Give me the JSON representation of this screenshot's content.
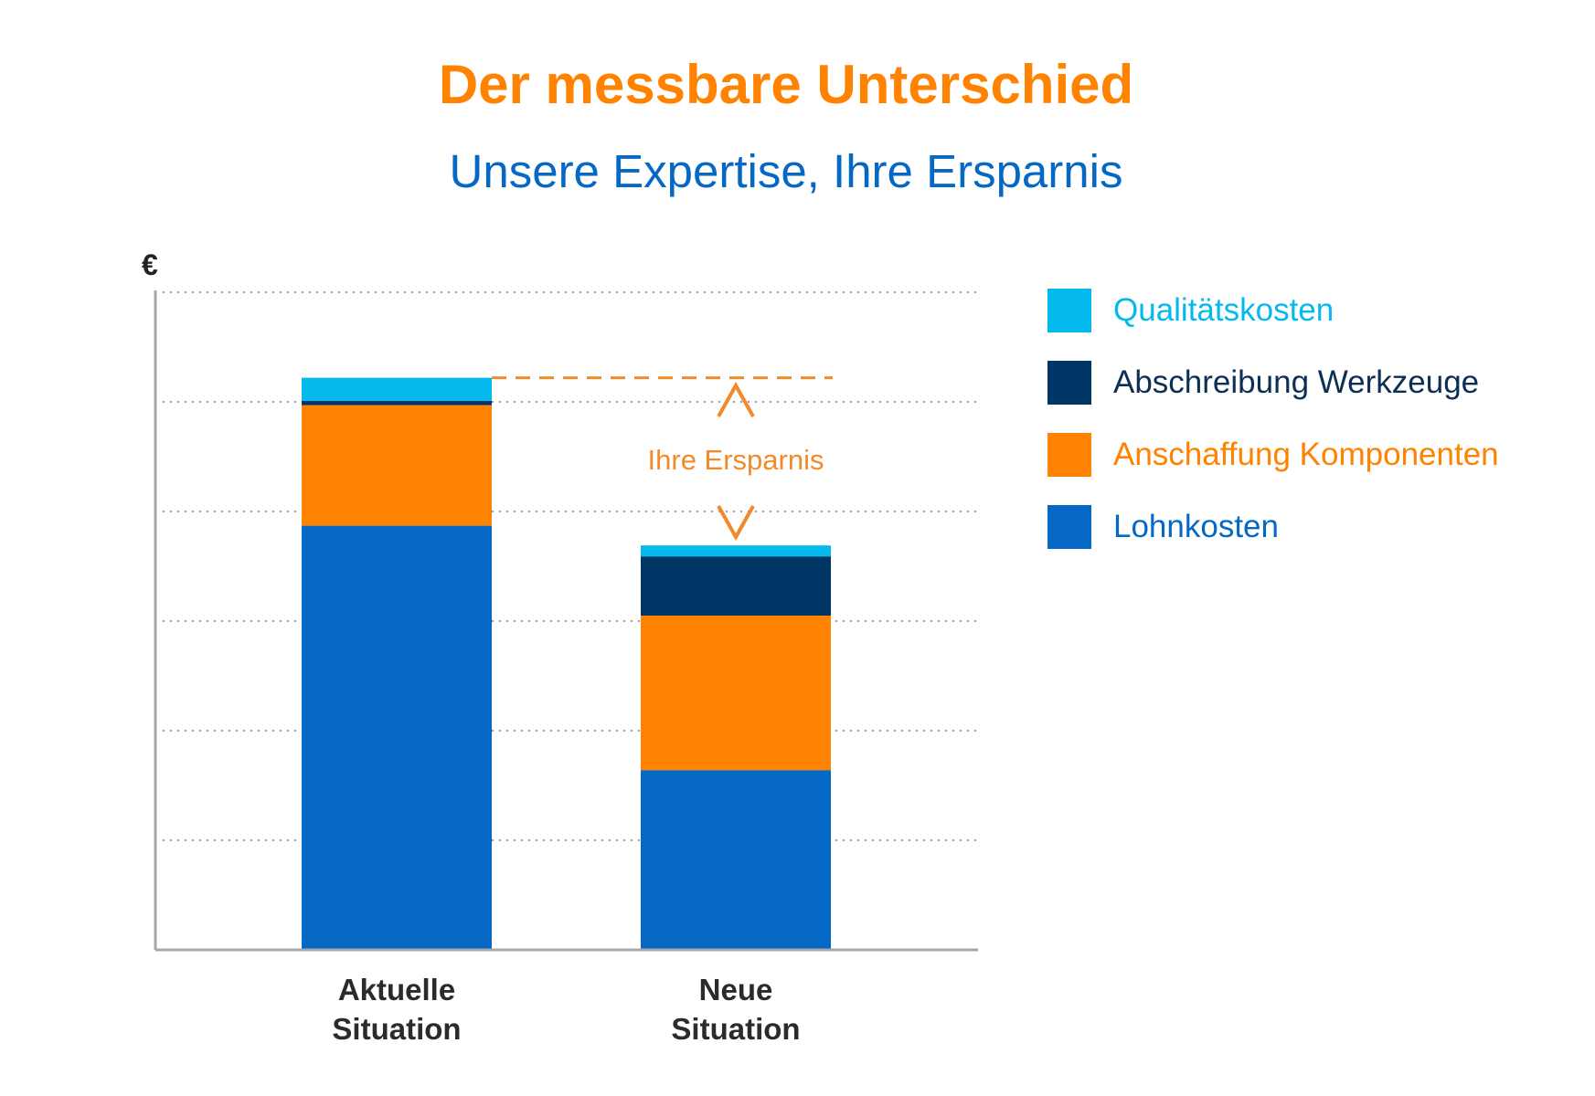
{
  "title": "Der messbare Unterschied",
  "subtitle": "Unsere Expertise, Ihre Ersparnis",
  "chart_data": {
    "type": "bar",
    "stacked": true,
    "ylabel": "€",
    "ylim": [
      0,
      6
    ],
    "grid": true,
    "legend_position": "right",
    "categories": [
      [
        "Aktuelle",
        "Situation"
      ],
      [
        "Neue",
        "Situation"
      ]
    ],
    "series": [
      {
        "name": "Lohnkosten",
        "color": "#0568C4",
        "values": [
          3.87,
          1.64
        ]
      },
      {
        "name": "Anschaffung Komponenten",
        "color": "#FF8200",
        "values": [
          1.1,
          1.41
        ]
      },
      {
        "name": "Abschreibung Werkzeuge",
        "color": "#003666",
        "values": [
          0.04,
          0.54
        ]
      },
      {
        "name": "Qualitätskosten",
        "color": "#04B9EB",
        "values": [
          0.21,
          0.1
        ]
      }
    ],
    "legend_order": [
      "Qualitätskosten",
      "Abschreibung Werkzeuge",
      "Anschaffung Komponenten",
      "Lohnkosten"
    ],
    "legend_text_colors": {
      "Qualitätskosten": "#04B9EB",
      "Abschreibung Werkzeuge": "#0E2F55",
      "Anschaffung Komponenten": "#FF8200",
      "Lohnkosten": "#0568C4"
    },
    "annotation": {
      "text": "Ihre Ersparnis",
      "color": "#F28A2A",
      "from_value": 5.22,
      "to_value": 3.69
    }
  }
}
